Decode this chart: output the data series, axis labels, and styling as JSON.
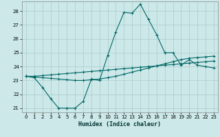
{
  "xlabel": "Humidex (Indice chaleur)",
  "bg_color": "#cce8e8",
  "grid_color": "#aacccc",
  "line_color": "#006666",
  "xlim": [
    -0.5,
    23.5
  ],
  "ylim": [
    20.7,
    28.7
  ],
  "yticks": [
    21,
    22,
    23,
    24,
    25,
    26,
    27,
    28
  ],
  "xticks": [
    0,
    1,
    2,
    3,
    4,
    5,
    6,
    7,
    8,
    9,
    10,
    11,
    12,
    13,
    14,
    15,
    16,
    17,
    18,
    19,
    20,
    21,
    22,
    23
  ],
  "series1_x": [
    0,
    1,
    2,
    3,
    4,
    5,
    6,
    7,
    8,
    9,
    10,
    11,
    12,
    13,
    14,
    15,
    16,
    17,
    18,
    19,
    20,
    21,
    22,
    23
  ],
  "series1_y": [
    23.3,
    23.2,
    22.5,
    21.7,
    21.0,
    21.0,
    21.0,
    21.5,
    23.1,
    23.0,
    24.8,
    26.5,
    27.9,
    27.85,
    28.5,
    27.4,
    26.3,
    25.0,
    25.0,
    24.1,
    24.5,
    24.1,
    24.0,
    23.9
  ],
  "series2_x": [
    0,
    1,
    2,
    3,
    4,
    5,
    6,
    7,
    8,
    9,
    10,
    11,
    12,
    13,
    14,
    15,
    16,
    17,
    18,
    19,
    20,
    21,
    22,
    23
  ],
  "series2_y": [
    23.3,
    23.25,
    23.2,
    23.15,
    23.1,
    23.05,
    23.0,
    23.0,
    23.05,
    23.1,
    23.2,
    23.3,
    23.45,
    23.6,
    23.75,
    23.9,
    24.05,
    24.2,
    24.35,
    24.5,
    24.6,
    24.65,
    24.7,
    24.75
  ],
  "series3_x": [
    0,
    1,
    2,
    3,
    4,
    5,
    6,
    7,
    8,
    9,
    10,
    11,
    12,
    13,
    14,
    15,
    16,
    17,
    18,
    19,
    20,
    21,
    22,
    23
  ],
  "series3_y": [
    23.3,
    23.3,
    23.35,
    23.4,
    23.45,
    23.5,
    23.55,
    23.6,
    23.65,
    23.7,
    23.75,
    23.8,
    23.85,
    23.9,
    23.95,
    24.0,
    24.05,
    24.1,
    24.15,
    24.2,
    24.25,
    24.3,
    24.35,
    24.4
  ]
}
